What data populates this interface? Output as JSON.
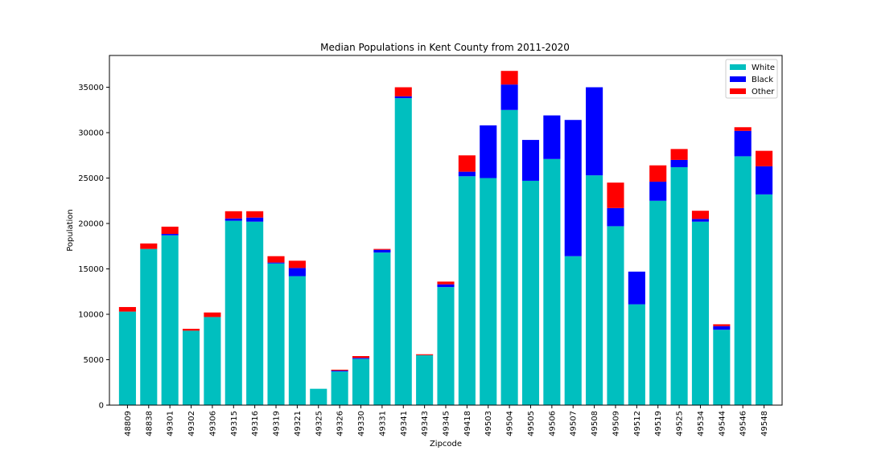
{
  "chart_data": {
    "type": "bar",
    "stacked": true,
    "title": "Median Populations in Kent County from 2011-2020",
    "xlabel": "Zipcode",
    "ylabel": "Population",
    "ylim": [
      0,
      38500
    ],
    "yticks": [
      0,
      5000,
      10000,
      15000,
      20000,
      25000,
      30000,
      35000
    ],
    "legend_position": "top-right",
    "grid": false,
    "categories": [
      "48809",
      "48838",
      "49301",
      "49302",
      "49306",
      "49315",
      "49316",
      "49319",
      "49321",
      "49325",
      "49326",
      "49330",
      "49331",
      "49341",
      "49343",
      "49345",
      "49418",
      "49503",
      "49504",
      "49505",
      "49506",
      "49507",
      "49508",
      "49509",
      "49512",
      "49519",
      "49525",
      "49534",
      "49544",
      "49546",
      "49548"
    ],
    "series": [
      {
        "name": "White",
        "color": "#00bfbf",
        "values": [
          10300,
          17200,
          18700,
          8200,
          9700,
          20300,
          20200,
          15600,
          14200,
          1800,
          3700,
          5100,
          16800,
          33800,
          5500,
          13000,
          25200,
          25000,
          32500,
          24700,
          27100,
          16400,
          25300,
          19700,
          11100,
          22500,
          26200,
          20200,
          8300,
          27400,
          23200
        ]
      },
      {
        "name": "Black",
        "color": "#0000ff",
        "values": [
          0,
          0,
          150,
          0,
          0,
          250,
          450,
          100,
          900,
          0,
          100,
          100,
          300,
          200,
          0,
          300,
          500,
          5800,
          2800,
          4500,
          4800,
          15000,
          9700,
          2000,
          3600,
          2100,
          800,
          300,
          400,
          2800,
          3100
        ]
      },
      {
        "name": "Other",
        "color": "#ff0000",
        "values": [
          500,
          600,
          800,
          200,
          500,
          800,
          700,
          700,
          800,
          0,
          100,
          200,
          100,
          1000,
          100,
          300,
          1800,
          0,
          1500,
          0,
          0,
          0,
          0,
          2800,
          0,
          1800,
          1200,
          900,
          200,
          400,
          1700
        ]
      }
    ]
  }
}
